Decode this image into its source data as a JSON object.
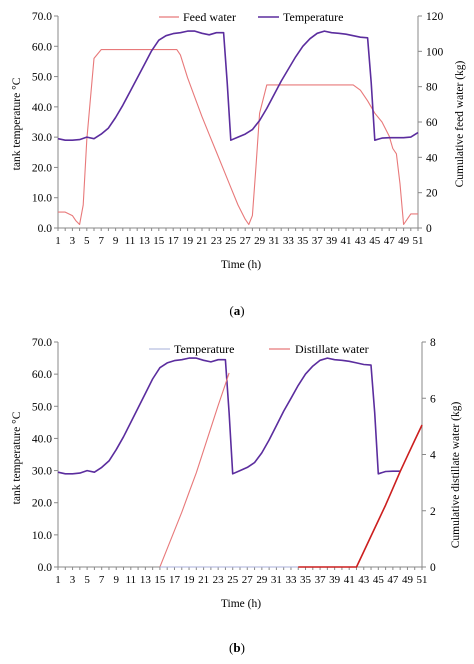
{
  "panels": [
    {
      "caption_letter": "a",
      "chart_data": {
        "type": "line",
        "xlabel": "Time (h)",
        "ylabel_left": "tank temperature °C",
        "ylabel_right": "Cumulative feed water (kg)",
        "xticks": [
          "1",
          "3",
          "5",
          "7",
          "9",
          "11",
          "13",
          "15",
          "17",
          "19",
          "21",
          "23",
          "25",
          "27",
          "29",
          "31",
          "33",
          "35",
          "37",
          "39",
          "41",
          "43",
          "45",
          "47",
          "49",
          "51"
        ],
        "xlim": [
          1,
          51
        ],
        "ylim_left": [
          0,
          70
        ],
        "ylim_right": [
          0,
          120
        ],
        "yticks_left": [
          "0.0",
          "10.0",
          "20.0",
          "30.0",
          "40.0",
          "50.0",
          "60.0",
          "70.0"
        ],
        "yticks_right": [
          "0",
          "20",
          "40",
          "60",
          "80",
          "100",
          "120"
        ],
        "grid": false,
        "legend_position": "top",
        "series": [
          {
            "name": "Feed water",
            "axis": "right",
            "color": "#e8797a",
            "x": [
              1,
              2,
              3,
              3.5,
              4,
              4.5,
              5,
              6,
              7,
              8,
              9,
              10,
              11,
              12,
              13,
              14,
              15,
              16,
              17,
              17.5,
              18,
              19,
              20,
              21,
              22,
              23,
              24,
              25,
              26,
              27,
              27.5,
              28,
              28.5,
              29,
              30,
              31,
              32,
              33,
              34,
              35,
              36,
              37,
              38,
              39,
              40,
              41,
              41.5,
              42,
              43,
              44,
              45,
              46,
              47,
              47.5,
              48,
              48.5,
              49,
              50,
              51
            ],
            "y": [
              9,
              9,
              7,
              4,
              2,
              13,
              50,
              96,
              101,
              101,
              101,
              101,
              101,
              101,
              101,
              101,
              101,
              101,
              101,
              101,
              98,
              85,
              74,
              63,
              53,
              43,
              33,
              23,
              13,
              5,
              2,
              7,
              35,
              65,
              81,
              81,
              81,
              81,
              81,
              81,
              81,
              81,
              81,
              81,
              81,
              81,
              81,
              81,
              78,
              72,
              65,
              60,
              52,
              45,
              42,
              25,
              2,
              8,
              8
            ]
          },
          {
            "name": "Temperature",
            "axis": "left",
            "color": "#5b2d9e",
            "x": [
              1,
              2,
              3,
              4,
              5,
              6,
              7,
              8,
              9,
              10,
              11,
              12,
              13,
              14,
              15,
              16,
              17,
              18,
              19,
              20,
              21,
              22,
              23,
              24,
              24.5,
              25,
              26,
              27,
              28,
              29,
              30,
              31,
              32,
              33,
              34,
              35,
              36,
              37,
              38,
              39,
              40,
              41,
              42,
              43,
              44,
              44.5,
              45,
              46,
              47,
              48,
              49,
              50,
              51
            ],
            "y": [
              29.5,
              29,
              29,
              29.2,
              30,
              29.5,
              31,
              33,
              36.5,
              40.5,
              45,
              49.5,
              54,
              58.5,
              62,
              63.5,
              64.2,
              64.5,
              65,
              65,
              64.3,
              63.8,
              64.5,
              64.5,
              48,
              29,
              30,
              31,
              32.5,
              35.5,
              39.5,
              44,
              48.5,
              52.5,
              56.5,
              60,
              62.5,
              64.3,
              65,
              64.5,
              64.3,
              64,
              63.5,
              63,
              62.8,
              48,
              29,
              29.7,
              29.8,
              29.8,
              29.8,
              30,
              31.5
            ]
          }
        ]
      }
    },
    {
      "caption_letter": "b",
      "chart_data": {
        "type": "line",
        "xlabel": "Time (h)",
        "ylabel_left": "tank temperature °C",
        "ylabel_right": "Cumulative distillate  water (kg)",
        "xticks": [
          "1",
          "3",
          "5",
          "7",
          "9",
          "11",
          "13",
          "15",
          "17",
          "19",
          "21",
          "23",
          "25",
          "27",
          "29",
          "31",
          "33",
          "35",
          "37",
          "39",
          "41",
          "43",
          "45",
          "47",
          "49",
          "51"
        ],
        "xlim": [
          1,
          51
        ],
        "ylim_left": [
          0,
          70
        ],
        "ylim_right": [
          0,
          8
        ],
        "yticks_left": [
          "0.0",
          "10.0",
          "20.0",
          "30.0",
          "40.0",
          "50.0",
          "60.0",
          "70.0"
        ],
        "yticks_right": [
          "0",
          "2",
          "4",
          "6",
          "8"
        ],
        "grid": false,
        "legend_position": "top",
        "series": [
          {
            "name": "Temperature",
            "axis": "left",
            "color": "#5b2d9e",
            "legend_color": "#b8bfe0",
            "x": [
              1,
              2,
              3,
              4,
              5,
              6,
              7,
              8,
              9,
              10,
              11,
              12,
              13,
              14,
              15,
              16,
              17,
              18,
              19,
              20,
              21,
              22,
              23,
              24,
              24.5,
              25,
              26,
              27,
              28,
              29,
              30,
              31,
              32,
              33,
              34,
              35,
              36,
              37,
              38,
              39,
              40,
              41,
              42,
              43,
              44,
              44.5,
              45,
              46,
              47,
              48
            ],
            "y": [
              29.5,
              29,
              29,
              29.2,
              30,
              29.5,
              31,
              33,
              36.5,
              40.5,
              45,
              49.5,
              54,
              58.5,
              62,
              63.5,
              64.2,
              64.5,
              65,
              65,
              64.3,
              63.8,
              64.5,
              64.5,
              48,
              29,
              30,
              31,
              32.5,
              35.5,
              39.5,
              44,
              48.5,
              52.5,
              56.5,
              60,
              62.5,
              64.3,
              65,
              64.5,
              64.3,
              64,
              63.5,
              63,
              62.8,
              48,
              29,
              29.7,
              29.8,
              29.8
            ]
          },
          {
            "name": "Distillate water",
            "axis": "right",
            "color": "#e8797a",
            "x": [
              15,
              16,
              17,
              18,
              19,
              20,
              21,
              22,
              23,
              24,
              24.5
            ],
            "y": [
              0,
              0.65,
              1.3,
              1.95,
              2.65,
              3.35,
              4.15,
              4.95,
              5.75,
              6.5,
              6.9
            ]
          },
          {
            "name": "",
            "axis": "right",
            "color": "#cc1f1f",
            "x": [
              34,
              41,
              42,
              43,
              44,
              45,
              46,
              47,
              48,
              49,
              50,
              51
            ],
            "y": [
              0,
              0,
              0,
              0.55,
              1.1,
              1.65,
              2.2,
              2.8,
              3.4,
              3.95,
              4.5,
              5.05
            ]
          },
          {
            "name": "",
            "axis": "right",
            "color": "#a8afd8",
            "x": [
              15,
              34
            ],
            "y": [
              0,
              0
            ]
          }
        ]
      }
    }
  ]
}
